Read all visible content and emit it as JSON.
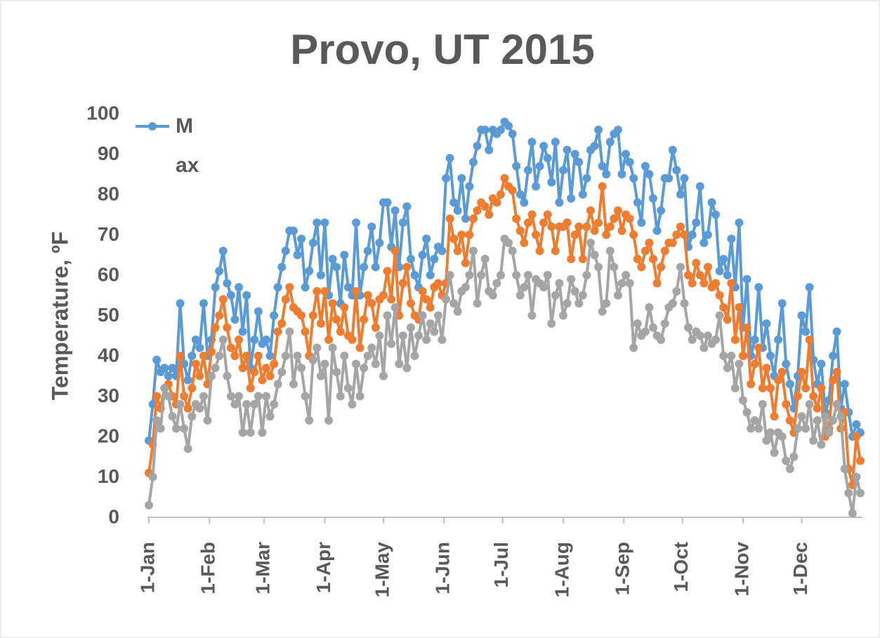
{
  "chart_data": {
    "type": "line",
    "title": "Provo, UT 2015",
    "y_label": "Temperature, ºF",
    "x": [
      0,
      2,
      4,
      6,
      8,
      10,
      12,
      14,
      16,
      18,
      20,
      22,
      24,
      26,
      28,
      30,
      32,
      34,
      36,
      38,
      40,
      42,
      44,
      46,
      48,
      50,
      52,
      54,
      56,
      58,
      60,
      62,
      64,
      66,
      68,
      70,
      72,
      74,
      76,
      78,
      80,
      82,
      84,
      86,
      88,
      90,
      92,
      94,
      96,
      98,
      100,
      102,
      104,
      106,
      108,
      110,
      112,
      114,
      116,
      118,
      120,
      122,
      124,
      126,
      128,
      130,
      132,
      134,
      136,
      138,
      140,
      142,
      144,
      146,
      148,
      150,
      152,
      154,
      156,
      158,
      160,
      162,
      164,
      166,
      168,
      170,
      172,
      174,
      176,
      178,
      180,
      182,
      184,
      186,
      188,
      190,
      192,
      194,
      196,
      198,
      200,
      202,
      204,
      206,
      208,
      210,
      212,
      214,
      216,
      218,
      220,
      222,
      224,
      226,
      228,
      230,
      232,
      234,
      236,
      238,
      240,
      242,
      244,
      246,
      248,
      250,
      252,
      254,
      256,
      258,
      260,
      262,
      264,
      266,
      268,
      270,
      272,
      274,
      276,
      278,
      280,
      282,
      284,
      286,
      288,
      290,
      292,
      294,
      296,
      298,
      300,
      302,
      304,
      306,
      308,
      310,
      312,
      314,
      316,
      318,
      320,
      322,
      324,
      326,
      328,
      330,
      332,
      334,
      336,
      338,
      340,
      342,
      344,
      346,
      348,
      350,
      352,
      354,
      356,
      358,
      360,
      362,
      364
    ],
    "series": [
      {
        "name": "Max",
        "color": "#5b9bd5",
        "values": [
          19,
          28,
          39,
          36,
          37,
          35,
          37,
          35,
          53,
          38,
          34,
          40,
          44,
          42,
          53,
          40,
          44,
          57,
          61,
          66,
          58,
          55,
          49,
          57,
          46,
          55,
          37,
          44,
          51,
          43,
          44,
          40,
          50,
          57,
          62,
          66,
          71,
          71,
          65,
          69,
          57,
          61,
          68,
          73,
          60,
          73,
          55,
          64,
          62,
          53,
          65,
          57,
          55,
          73,
          55,
          62,
          66,
          72,
          62,
          68,
          78,
          78,
          67,
          76,
          62,
          73,
          77,
          64,
          60,
          57,
          65,
          69,
          60,
          64,
          67,
          66,
          84,
          89,
          78,
          76,
          84,
          74,
          82,
          88,
          92,
          96,
          96,
          91,
          96,
          95,
          96,
          98,
          97,
          95,
          87,
          80,
          78,
          86,
          93,
          82,
          87,
          92,
          89,
          83,
          93,
          78,
          86,
          91,
          79,
          90,
          88,
          80,
          84,
          91,
          92,
          96,
          87,
          85,
          93,
          95,
          96,
          85,
          90,
          88,
          84,
          78,
          73,
          87,
          85,
          79,
          71,
          76,
          84,
          84,
          91,
          86,
          80,
          84,
          67,
          70,
          73,
          82,
          68,
          70,
          78,
          75,
          61,
          64,
          60,
          69,
          57,
          73,
          47,
          59,
          40,
          44,
          57,
          42,
          48,
          40,
          35,
          44,
          53,
          38,
          33,
          27,
          35,
          50,
          46,
          57,
          39,
          33,
          38,
          26,
          29,
          40,
          46,
          27,
          33,
          26,
          20,
          23,
          21
        ]
      },
      {
        "color": "#ed7d31",
        "values": [
          11,
          18,
          30,
          27,
          32,
          33,
          30,
          28,
          40,
          30,
          27,
          32,
          38,
          35,
          40,
          33,
          41,
          47,
          50,
          54,
          47,
          42,
          40,
          44,
          37,
          40,
          32,
          36,
          40,
          34,
          37,
          35,
          38,
          46,
          48,
          54,
          57,
          52,
          51,
          50,
          46,
          40,
          50,
          56,
          48,
          56,
          44,
          53,
          49,
          46,
          52,
          45,
          44,
          56,
          42,
          49,
          55,
          53,
          47,
          54,
          55,
          61,
          54,
          66,
          50,
          58,
          62,
          53,
          50,
          49,
          56,
          54,
          52,
          57,
          58,
          55,
          58,
          74,
          69,
          66,
          70,
          63,
          70,
          74,
          76,
          78,
          77,
          75,
          79,
          78,
          80,
          84,
          82,
          81,
          74,
          71,
          68,
          73,
          75,
          70,
          66,
          73,
          75,
          72,
          66,
          72,
          72,
          73,
          64,
          70,
          72,
          64,
          72,
          76,
          71,
          73,
          82,
          70,
          72,
          74,
          76,
          71,
          75,
          74,
          70,
          64,
          62,
          66,
          68,
          64,
          58,
          62,
          66,
          68,
          68,
          70,
          72,
          70,
          60,
          58,
          63,
          60,
          58,
          62,
          57,
          58,
          55,
          52,
          49,
          58,
          44,
          52,
          40,
          47,
          33,
          38,
          42,
          32,
          37,
          32,
          25,
          34,
          36,
          28,
          24,
          21,
          30,
          36,
          32,
          44,
          30,
          27,
          32,
          20,
          22,
          34,
          36,
          22,
          26,
          12,
          8,
          20,
          14
        ]
      },
      {
        "color": "#a5a5a5",
        "values": [
          3,
          10,
          24,
          22,
          32,
          30,
          25,
          22,
          28,
          22,
          17,
          25,
          28,
          27,
          30,
          24,
          35,
          37,
          40,
          44,
          35,
          30,
          28,
          30,
          21,
          28,
          21,
          28,
          30,
          21,
          30,
          25,
          28,
          33,
          36,
          40,
          46,
          33,
          40,
          37,
          30,
          24,
          39,
          42,
          35,
          38,
          24,
          42,
          36,
          30,
          40,
          32,
          28,
          38,
          30,
          37,
          40,
          42,
          38,
          45,
          35,
          50,
          43,
          52,
          38,
          45,
          37,
          47,
          40,
          45,
          50,
          44,
          48,
          46,
          50,
          44,
          54,
          60,
          53,
          51,
          56,
          57,
          60,
          66,
          53,
          60,
          64,
          56,
          55,
          58,
          60,
          69,
          68,
          66,
          60,
          55,
          57,
          60,
          50,
          59,
          58,
          57,
          60,
          48,
          55,
          58,
          50,
          53,
          59,
          56,
          53,
          55,
          60,
          68,
          65,
          62,
          51,
          53,
          66,
          62,
          55,
          58,
          60,
          58,
          42,
          48,
          45,
          46,
          52,
          47,
          45,
          44,
          48,
          52,
          53,
          56,
          62,
          53,
          47,
          44,
          46,
          45,
          42,
          45,
          43,
          44,
          50,
          40,
          37,
          40,
          32,
          38,
          29,
          26,
          22,
          24,
          22,
          28,
          19,
          21,
          16,
          21,
          20,
          14,
          12,
          15,
          22,
          25,
          22,
          28,
          19,
          24,
          18,
          25,
          21,
          24,
          28,
          25,
          12,
          6,
          1,
          10,
          6
        ]
      }
    ],
    "xlim": [
      0,
      364
    ],
    "xticks": [
      {
        "value": 0,
        "label": "1-Jan"
      },
      {
        "value": 31,
        "label": "1-Feb"
      },
      {
        "value": 59,
        "label": "1-Mar"
      },
      {
        "value": 90,
        "label": "1-Apr"
      },
      {
        "value": 120,
        "label": "1-May"
      },
      {
        "value": 151,
        "label": "1-Jun"
      },
      {
        "value": 181,
        "label": "1-Jul"
      },
      {
        "value": 212,
        "label": "1-Aug"
      },
      {
        "value": 243,
        "label": "1-Sep"
      },
      {
        "value": 273,
        "label": "1-Oct"
      },
      {
        "value": 304,
        "label": "1-Nov"
      },
      {
        "value": 334,
        "label": "1-Dec"
      }
    ],
    "ylim": [
      0,
      100
    ],
    "yticks": [
      0,
      10,
      20,
      30,
      40,
      50,
      60,
      70,
      80,
      90,
      100
    ],
    "legend": "top-left"
  }
}
